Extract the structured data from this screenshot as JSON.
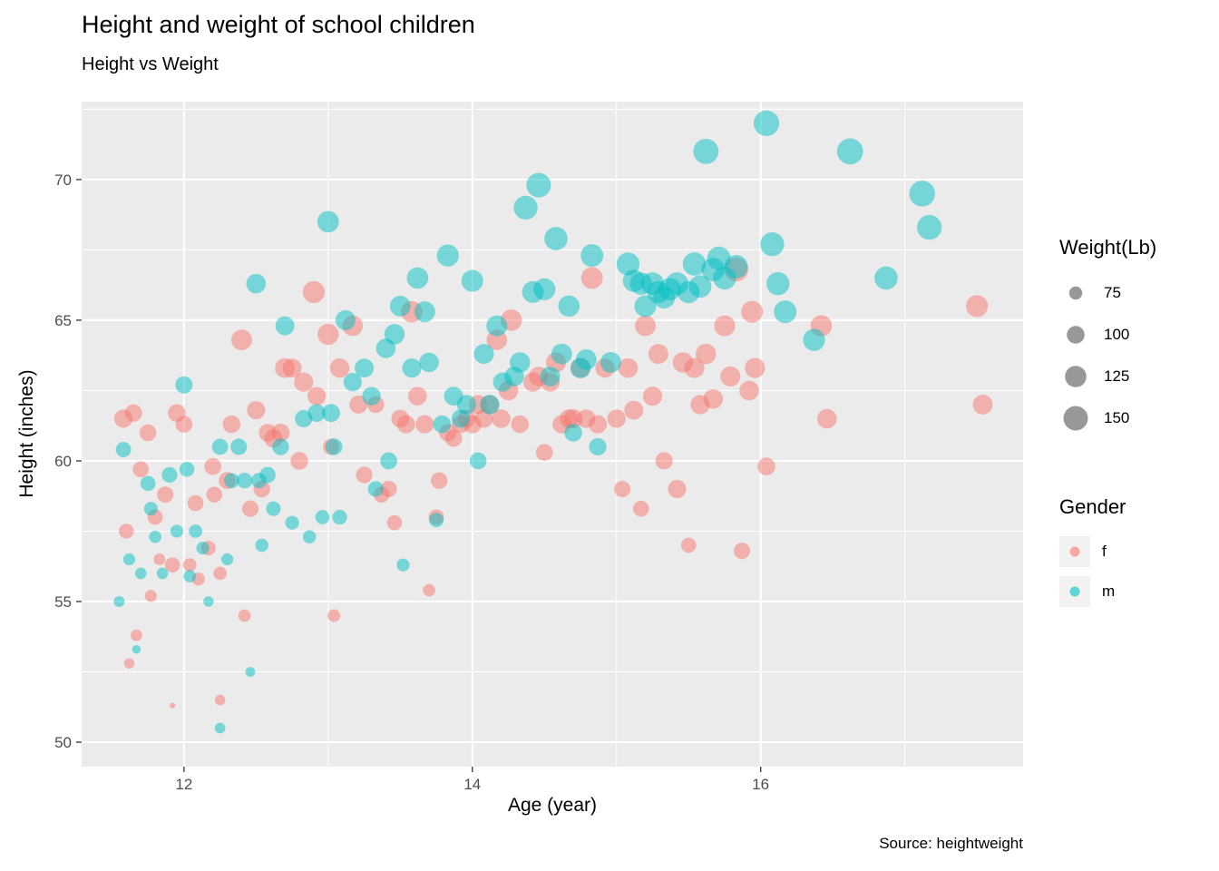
{
  "colors": {
    "panel": "#EBEBEB",
    "grid": "#FFFFFF",
    "tick": "#333333",
    "tick_label": "#4D4D4D",
    "size_key": "#1A1A1A"
  },
  "chart_data": {
    "type": "scatter",
    "title": "Height and weight of school children",
    "subtitle": "Height vs Weight",
    "caption": "Source: heightweight",
    "xlabel": "Age (year)",
    "ylabel": "Height (inches)",
    "xlim": [
      11.29,
      17.82
    ],
    "ylim": [
      49.13,
      72.77
    ],
    "x_ticks": [
      12,
      14,
      16
    ],
    "x_minor": [
      13,
      15,
      17
    ],
    "y_ticks": [
      50,
      55,
      60,
      65,
      70
    ],
    "y_minor": [
      52.5,
      57.5,
      62.5,
      67.5,
      72.5
    ],
    "grid": true,
    "legend_position": "right",
    "point_alpha": 0.5,
    "size_legend": {
      "title": "Weight(Lb)",
      "values": [
        75,
        100,
        125,
        150
      ]
    },
    "color_legend": {
      "title": "Gender",
      "entries": [
        {
          "label": "f",
          "color": "#F8766D"
        },
        {
          "label": "m",
          "color": "#00BFC4"
        }
      ]
    },
    "series": [
      {
        "name": "f",
        "color": "#F8766D",
        "fields": [
          "age_year",
          "height_in",
          "weight_lb"
        ],
        "points": [
          [
            11.58,
            61.5,
            104
          ],
          [
            11.6,
            57.5,
            84
          ],
          [
            11.62,
            52.8,
            64
          ],
          [
            11.65,
            61.7,
            98
          ],
          [
            11.67,
            53.8,
            68.5
          ],
          [
            11.7,
            59.7,
            90
          ],
          [
            11.75,
            61.0,
            94
          ],
          [
            11.77,
            55.2,
            70
          ],
          [
            11.8,
            58.0,
            86
          ],
          [
            11.83,
            56.5,
            69
          ],
          [
            11.87,
            58.8,
            92
          ],
          [
            11.92,
            56.3,
            85
          ],
          [
            11.92,
            51.3,
            50.5
          ],
          [
            11.95,
            61.7,
            100
          ],
          [
            12.0,
            61.3,
            95
          ],
          [
            12.04,
            56.3,
            77
          ],
          [
            12.08,
            58.5,
            90
          ],
          [
            12.1,
            55.8,
            74
          ],
          [
            12.17,
            56.9,
            82
          ],
          [
            12.2,
            59.8,
            95
          ],
          [
            12.21,
            58.8,
            89
          ],
          [
            12.25,
            56.0,
            76
          ],
          [
            12.25,
            51.5,
            64
          ],
          [
            12.3,
            59.3,
            96
          ],
          [
            12.33,
            61.3,
            100
          ],
          [
            12.4,
            64.3,
            120
          ],
          [
            12.42,
            54.5,
            72
          ],
          [
            12.46,
            58.3,
            93
          ],
          [
            12.5,
            61.8,
            103
          ],
          [
            12.54,
            59.0,
            94
          ],
          [
            12.58,
            61.0,
            100
          ],
          [
            12.62,
            60.8,
            104
          ],
          [
            12.67,
            61.0,
            103
          ],
          [
            12.7,
            63.3,
            114
          ],
          [
            12.75,
            63.3,
            108
          ],
          [
            12.8,
            60.0,
            100
          ],
          [
            12.83,
            62.8,
            110
          ],
          [
            12.9,
            66.0,
            130
          ],
          [
            12.92,
            62.3,
            105
          ],
          [
            13.0,
            64.5,
            123.5
          ],
          [
            13.02,
            60.5,
            91
          ],
          [
            13.04,
            54.5,
            73
          ],
          [
            13.08,
            63.3,
            111
          ],
          [
            13.17,
            64.8,
            118
          ],
          [
            13.21,
            62.0,
            102
          ],
          [
            13.25,
            59.5,
            93
          ],
          [
            13.33,
            62.0,
            94.5
          ],
          [
            13.37,
            58.8,
            90
          ],
          [
            13.42,
            59.0,
            92
          ],
          [
            13.46,
            57.8,
            85
          ],
          [
            13.5,
            61.5,
            101
          ],
          [
            13.54,
            61.3,
            103
          ],
          [
            13.58,
            65.3,
            125
          ],
          [
            13.62,
            62.3,
            106
          ],
          [
            13.67,
            61.3,
            104
          ],
          [
            13.7,
            55.4,
            72
          ],
          [
            13.75,
            58.0,
            86
          ],
          [
            13.77,
            59.3,
            94
          ],
          [
            13.83,
            61.0,
            98
          ],
          [
            13.87,
            60.8,
            96
          ],
          [
            13.92,
            61.3,
            100
          ],
          [
            13.96,
            61.5,
            102
          ],
          [
            14.0,
            61.3,
            103
          ],
          [
            14.04,
            62.0,
            108
          ],
          [
            14.08,
            61.5,
            104
          ],
          [
            14.12,
            62.0,
            106
          ],
          [
            14.17,
            64.3,
            118
          ],
          [
            14.2,
            61.5,
            105
          ],
          [
            14.25,
            62.5,
            112
          ],
          [
            14.27,
            65.0,
            125
          ],
          [
            14.33,
            61.3,
            100
          ],
          [
            14.42,
            62.8,
            110
          ],
          [
            14.46,
            63.0,
            112
          ],
          [
            14.5,
            60.3,
            95
          ],
          [
            14.54,
            62.8,
            108
          ],
          [
            14.58,
            63.5,
            115
          ],
          [
            14.62,
            61.3,
            104
          ],
          [
            14.67,
            61.5,
            106
          ],
          [
            14.7,
            61.5,
            108
          ],
          [
            14.75,
            63.3,
            112
          ],
          [
            14.79,
            61.5,
            105
          ],
          [
            14.83,
            66.5,
            128
          ],
          [
            14.87,
            61.3,
            103
          ],
          [
            14.92,
            63.3,
            110
          ],
          [
            15.0,
            61.5,
            104
          ],
          [
            15.04,
            59.0,
            92
          ],
          [
            15.08,
            63.3,
            112
          ],
          [
            15.12,
            61.8,
            108
          ],
          [
            15.17,
            58.3,
            90
          ],
          [
            15.2,
            64.8,
            120
          ],
          [
            15.25,
            62.3,
            110
          ],
          [
            15.29,
            63.8,
            115
          ],
          [
            15.33,
            60.0,
            98
          ],
          [
            15.42,
            59.0,
            104
          ],
          [
            15.46,
            63.5,
            118
          ],
          [
            15.5,
            57.0,
            85
          ],
          [
            15.54,
            63.3,
            115
          ],
          [
            15.58,
            62.0,
            110
          ],
          [
            15.62,
            63.8,
            118
          ],
          [
            15.67,
            62.2,
            112
          ],
          [
            15.75,
            64.8,
            122
          ],
          [
            15.79,
            63.0,
            115
          ],
          [
            15.83,
            66.8,
            145
          ],
          [
            15.87,
            56.8,
            92
          ],
          [
            15.92,
            62.5,
            112.5
          ],
          [
            15.94,
            65.3,
            128
          ],
          [
            15.96,
            63.3,
            116
          ],
          [
            16.04,
            59.8,
            100
          ],
          [
            16.42,
            64.8,
            125
          ],
          [
            16.46,
            61.5,
            112
          ],
          [
            17.5,
            65.5,
            130
          ],
          [
            17.54,
            62.0,
            114
          ]
        ]
      },
      {
        "name": "m",
        "color": "#00BFC4",
        "fields": [
          "age_year",
          "height_in",
          "weight_lb"
        ],
        "points": [
          [
            11.55,
            55.0,
            66
          ],
          [
            11.58,
            60.4,
            86
          ],
          [
            11.62,
            56.5,
            70
          ],
          [
            11.67,
            53.3,
            58
          ],
          [
            11.7,
            56.0,
            68
          ],
          [
            11.75,
            59.2,
            85
          ],
          [
            11.77,
            58.3,
            78
          ],
          [
            11.8,
            57.3,
            72
          ],
          [
            11.85,
            56.0,
            68
          ],
          [
            11.9,
            59.5,
            88
          ],
          [
            11.95,
            57.5,
            74
          ],
          [
            12.0,
            62.7,
            97
          ],
          [
            12.02,
            59.7,
            84
          ],
          [
            12.04,
            55.9,
            72
          ],
          [
            12.08,
            57.5,
            76
          ],
          [
            12.13,
            56.9,
            74
          ],
          [
            12.17,
            55.0,
            64
          ],
          [
            12.25,
            60.5,
            90
          ],
          [
            12.25,
            50.5,
            65
          ],
          [
            12.3,
            56.5,
            70
          ],
          [
            12.33,
            59.3,
            85
          ],
          [
            12.38,
            60.5,
            92
          ],
          [
            12.42,
            59.3,
            88
          ],
          [
            12.46,
            52.5,
            62
          ],
          [
            12.5,
            66.3,
            112
          ],
          [
            12.52,
            59.3,
            86
          ],
          [
            12.54,
            57.0,
            75
          ],
          [
            12.58,
            59.5,
            90
          ],
          [
            12.62,
            58.3,
            82
          ],
          [
            12.67,
            60.5,
            94
          ],
          [
            12.7,
            64.8,
            108
          ],
          [
            12.75,
            57.8,
            78
          ],
          [
            12.83,
            61.5,
            98
          ],
          [
            12.87,
            57.3,
            76
          ],
          [
            12.92,
            61.7,
            100
          ],
          [
            12.96,
            58.0,
            80
          ],
          [
            13.0,
            68.5,
            127
          ],
          [
            13.02,
            61.7,
            102
          ],
          [
            13.04,
            60.5,
            95
          ],
          [
            13.08,
            58.0,
            83
          ],
          [
            13.12,
            65.0,
            115
          ],
          [
            13.17,
            62.8,
            104
          ],
          [
            13.25,
            63.3,
            108
          ],
          [
            13.3,
            62.3,
            105
          ],
          [
            13.33,
            59.0,
            88
          ],
          [
            13.4,
            64.0,
            112
          ],
          [
            13.42,
            60.0,
            96
          ],
          [
            13.46,
            64.5,
            118
          ],
          [
            13.5,
            65.5,
            120
          ],
          [
            13.52,
            56.3,
            74
          ],
          [
            13.58,
            63.3,
            110
          ],
          [
            13.62,
            66.5,
            126
          ],
          [
            13.67,
            65.3,
            122
          ],
          [
            13.7,
            63.5,
            112
          ],
          [
            13.75,
            57.9,
            82
          ],
          [
            13.79,
            61.3,
            100
          ],
          [
            13.83,
            67.3,
            130
          ],
          [
            13.87,
            62.3,
            108
          ],
          [
            13.92,
            61.5,
            104
          ],
          [
            13.96,
            62.0,
            110
          ],
          [
            14.0,
            66.4,
            128
          ],
          [
            14.04,
            60.0,
            95
          ],
          [
            14.08,
            63.8,
            115
          ],
          [
            14.12,
            62.0,
            112
          ],
          [
            14.17,
            64.8,
            122
          ],
          [
            14.21,
            62.8,
            110
          ],
          [
            14.29,
            63.0,
            112
          ],
          [
            14.33,
            63.5,
            118
          ],
          [
            14.37,
            69.0,
            145
          ],
          [
            14.42,
            66.0,
            128
          ],
          [
            14.46,
            69.8,
            150
          ],
          [
            14.5,
            66.1,
            130
          ],
          [
            14.54,
            63.0,
            114
          ],
          [
            14.58,
            67.9,
            140
          ],
          [
            14.62,
            63.8,
            120
          ],
          [
            14.67,
            65.5,
            125
          ],
          [
            14.7,
            61.0,
            100
          ],
          [
            14.75,
            63.3,
            118
          ],
          [
            14.79,
            63.6,
            120
          ],
          [
            14.83,
            67.3,
            135
          ],
          [
            14.87,
            60.5,
            98
          ],
          [
            14.96,
            63.5,
            120
          ],
          [
            15.08,
            67.0,
            138
          ],
          [
            15.12,
            66.4,
            130
          ],
          [
            15.17,
            66.3,
            132
          ],
          [
            15.2,
            65.5,
            128
          ],
          [
            15.25,
            66.3,
            135
          ],
          [
            15.29,
            66.0,
            130
          ],
          [
            15.33,
            65.8,
            128
          ],
          [
            15.37,
            66.1,
            133
          ],
          [
            15.42,
            66.3,
            135
          ],
          [
            15.5,
            66.0,
            132
          ],
          [
            15.54,
            67.0,
            140
          ],
          [
            15.58,
            66.2,
            134
          ],
          [
            15.62,
            71.0,
            157
          ],
          [
            15.67,
            66.8,
            140
          ],
          [
            15.71,
            67.2,
            142
          ],
          [
            15.75,
            66.5,
            138
          ],
          [
            15.83,
            66.9,
            142
          ],
          [
            16.04,
            72.0,
            160
          ],
          [
            16.08,
            67.7,
            145
          ],
          [
            16.12,
            66.3,
            138
          ],
          [
            16.17,
            65.3,
            135
          ],
          [
            16.37,
            64.3,
            130
          ],
          [
            16.62,
            71.0,
            164
          ],
          [
            16.87,
            66.5,
            140
          ],
          [
            17.12,
            69.5,
            162
          ],
          [
            17.17,
            68.3,
            152
          ]
        ]
      }
    ]
  }
}
